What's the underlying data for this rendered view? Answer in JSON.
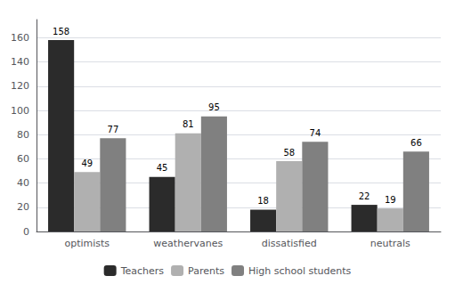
{
  "chart_data": {
    "type": "bar",
    "categories": [
      "optimists",
      "weathervanes",
      "dissatisfied",
      "neutrals"
    ],
    "series": [
      {
        "name": "Teachers",
        "color": "#2b2b2b",
        "values": [
          158,
          45,
          18,
          22
        ]
      },
      {
        "name": "Parents",
        "color": "#b0b0b0",
        "values": [
          49,
          81,
          58,
          19
        ]
      },
      {
        "name": "High school students",
        "color": "#808080",
        "values": [
          77,
          95,
          74,
          66
        ]
      }
    ],
    "ylim": [
      0,
      175
    ],
    "yticks": [
      0,
      20,
      40,
      60,
      80,
      100,
      120,
      140,
      160
    ],
    "grid": true,
    "legend": "bottom",
    "data_labels": true
  }
}
